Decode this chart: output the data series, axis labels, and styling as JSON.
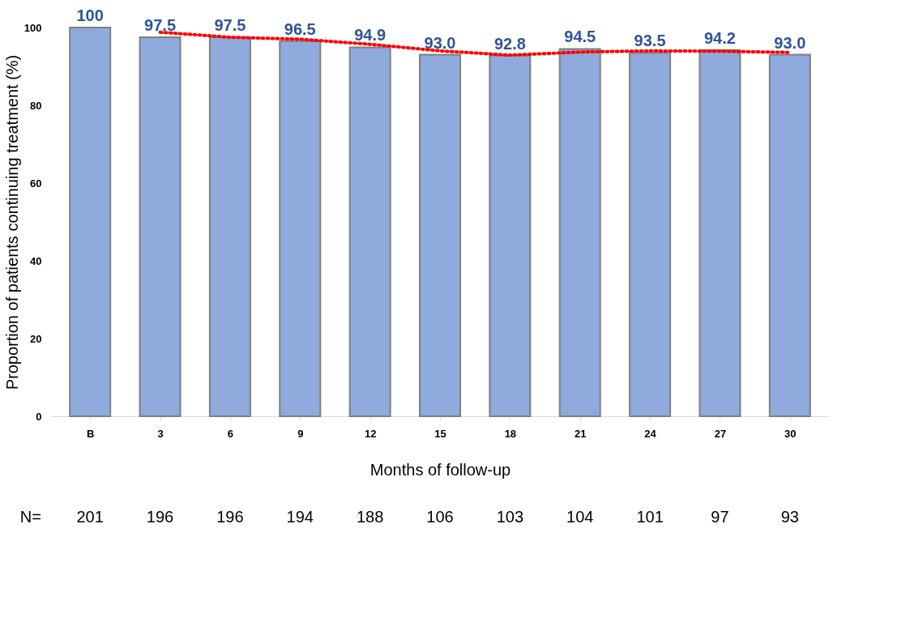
{
  "chart_data": {
    "type": "bar",
    "xlabel": "Months of follow-up",
    "ylabel": "Proportion of patients continuing treatment (%)",
    "categories": [
      "B",
      "3",
      "6",
      "9",
      "12",
      "15",
      "18",
      "21",
      "24",
      "27",
      "30"
    ],
    "series": [
      {
        "color": "#8faadc",
        "values": [
          100,
          97.5,
          97.5,
          96.5,
          94.9,
          93.0,
          92.8,
          94.5,
          93.5,
          94.2,
          93.0
        ],
        "value_labels": [
          "100",
          "97.5",
          "97.5",
          "96.5",
          "94.9",
          "93.0",
          "92.8",
          "94.5",
          "93.5",
          "94.2",
          "93.0"
        ]
      },
      {
        "type": "line",
        "color": "#ff0000",
        "line_style": "dotted",
        "marker": "none",
        "values": [
          null,
          98.8,
          97.5,
          97.0,
          95.7,
          94.0,
          92.9,
          93.7,
          94.0,
          93.9,
          93.6
        ]
      }
    ],
    "ylim": [
      0,
      100
    ],
    "yticks": [
      0,
      20,
      40,
      60,
      80,
      100
    ],
    "grid": false,
    "annotations": [
      "N=",
      "201",
      "196",
      "196",
      "194",
      "188",
      "106",
      "103",
      "104",
      "101",
      "97",
      "93"
    ]
  }
}
